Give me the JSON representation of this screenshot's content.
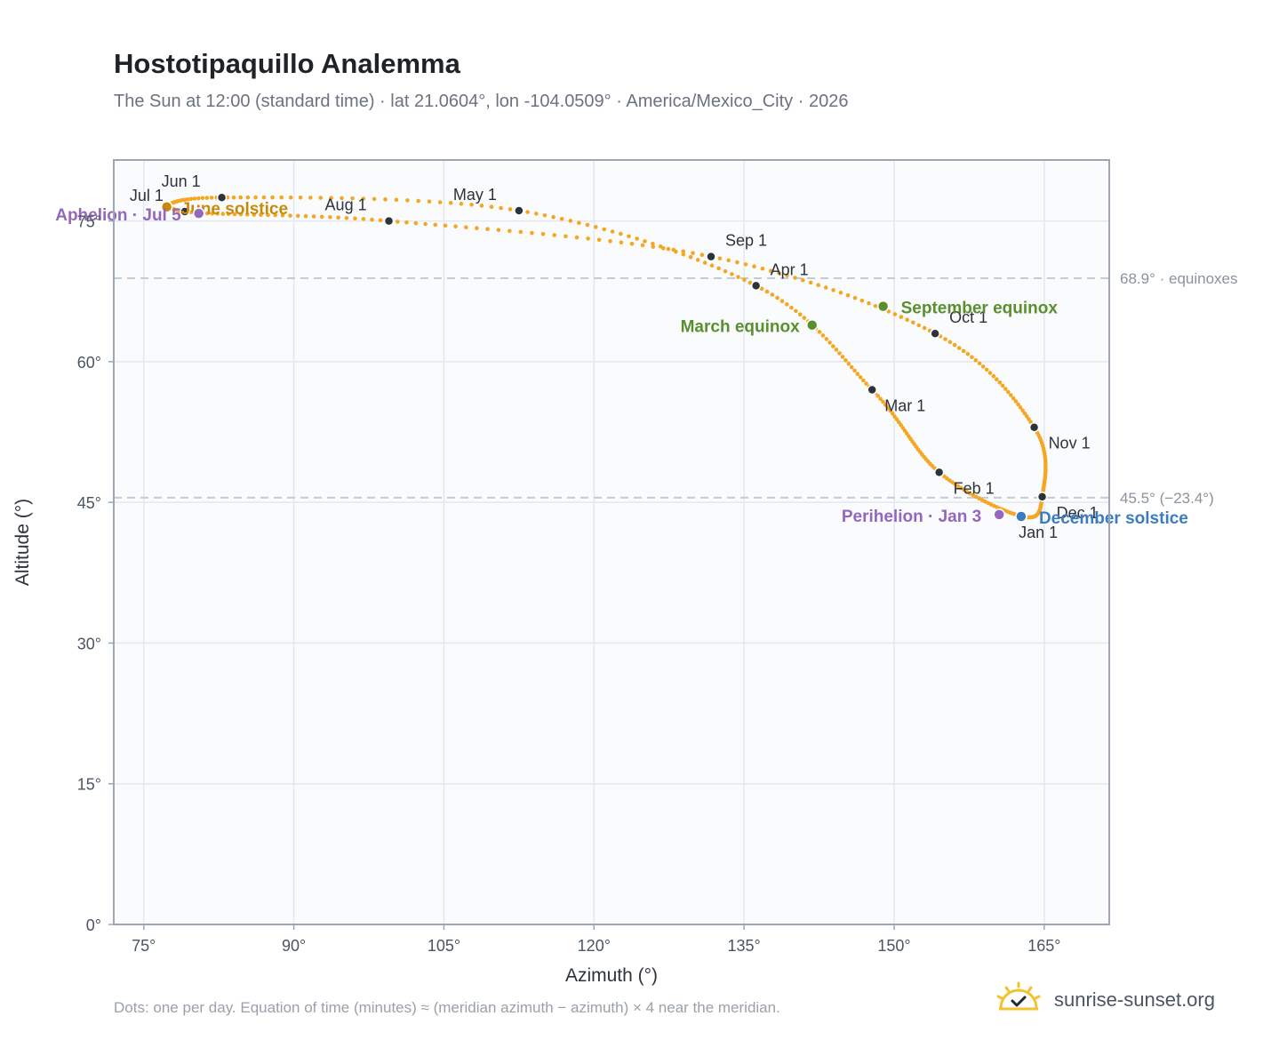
{
  "title": "Hostotipaquillo Analemma",
  "subtitle": "The Sun at 12:00 (standard time) · lat 21.0604°, lon -104.0509° · America/Mexico_City · 2026",
  "footnote": "Dots: one per day. Equation of time (minutes) ≈ (meridian azimuth − azimuth) × 4 near the meridian.",
  "brand": {
    "name": "sunrise-sunset.org",
    "icon": "sun-check-icon"
  },
  "colors": {
    "curve": "#f5a623",
    "month_dot": "#2d333b",
    "equinox": "#5a8f2e",
    "june_solstice": "#c98a0c",
    "december_solstice": "#3b7cc0",
    "apsis": "#9467bd",
    "reference_line": "#c3cbd6",
    "plot_background": "#f9fbfd",
    "grid": "#e3e8ef",
    "frame": "#9aa7b6"
  },
  "chart_data": {
    "type": "scatter",
    "xlabel": "Azimuth (°)",
    "ylabel": "Altitude (°)",
    "xlim": [
      72,
      171.5
    ],
    "ylim": [
      0,
      81.5
    ],
    "x_ticks": [
      75,
      90,
      105,
      120,
      135,
      150,
      165
    ],
    "x_tick_labels": [
      "75°",
      "90°",
      "105°",
      "120°",
      "135°",
      "150°",
      "165°"
    ],
    "y_ticks": [
      0,
      15,
      30,
      45,
      60,
      75
    ],
    "y_tick_labels": [
      "0°",
      "15°",
      "30°",
      "45°",
      "60°",
      "75°"
    ],
    "grid": true,
    "reference_lines": [
      {
        "altitude": 68.9,
        "label": "68.9° · equinoxes"
      },
      {
        "altitude": 45.5,
        "label": "45.5° (−23.4°)"
      }
    ],
    "month_points": [
      {
        "label": "Jan 1",
        "az": 162.8,
        "alt": 43.5
      },
      {
        "label": "Feb 1",
        "az": 154.5,
        "alt": 48.2
      },
      {
        "label": "Mar 1",
        "az": 147.8,
        "alt": 57.0
      },
      {
        "label": "Apr 1",
        "az": 136.2,
        "alt": 68.1
      },
      {
        "label": "May 1",
        "az": 112.5,
        "alt": 76.1
      },
      {
        "label": "Jun 1",
        "az": 82.8,
        "alt": 77.5
      },
      {
        "label": "Jul 1",
        "az": 79.1,
        "alt": 76.0
      },
      {
        "label": "Aug 1",
        "az": 99.5,
        "alt": 75.0
      },
      {
        "label": "Sep 1",
        "az": 131.7,
        "alt": 71.2
      },
      {
        "label": "Oct 1",
        "az": 154.1,
        "alt": 63.0
      },
      {
        "label": "Nov 1",
        "az": 164.0,
        "alt": 53.0
      },
      {
        "label": "Dec 1",
        "az": 164.8,
        "alt": 45.6
      }
    ],
    "events": [
      {
        "label": "March equinox",
        "az": 141.8,
        "alt": 63.9,
        "color_key": "equinox"
      },
      {
        "label": "June solstice",
        "az": 77.3,
        "alt": 76.5,
        "color_key": "june_solstice"
      },
      {
        "label": "September equinox",
        "az": 148.9,
        "alt": 65.9,
        "color_key": "equinox"
      },
      {
        "label": "December solstice",
        "az": 162.7,
        "alt": 43.5,
        "color_key": "december_solstice"
      },
      {
        "label": "Aphelion · Jul 5",
        "az": 80.5,
        "alt": 75.8,
        "color_key": "apsis"
      },
      {
        "label": "Perihelion · Jan 3",
        "az": 160.5,
        "alt": 43.7,
        "color_key": "apsis"
      }
    ]
  }
}
